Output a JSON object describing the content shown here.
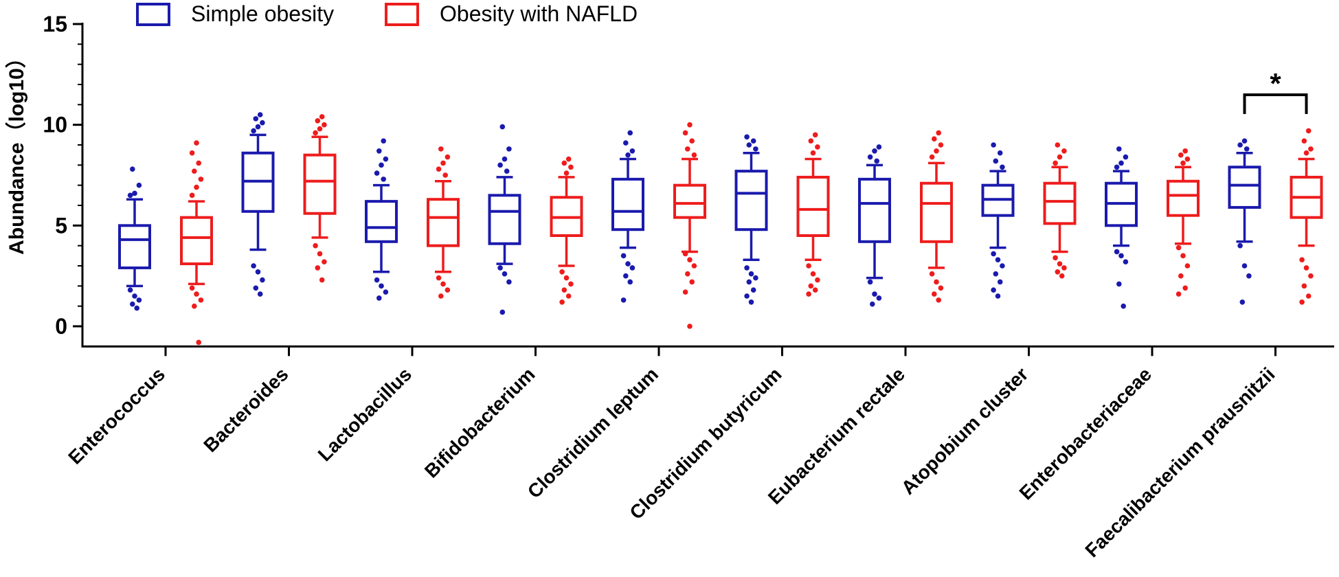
{
  "chart_data": {
    "type": "box",
    "title": "",
    "xlabel": "",
    "ylabel": "Abundance（log10）",
    "ylim": [
      -1,
      15
    ],
    "yticks": [
      0,
      5,
      10,
      15
    ],
    "legend_position": "top",
    "colors": {
      "simple": "#1a1aad",
      "nafld": "#ee1c1c"
    },
    "series": [
      {
        "name": "Simple obesity",
        "key": "simple",
        "color": "#1a1aad"
      },
      {
        "name": "Obesity with NAFLD",
        "key": "nafld",
        "color": "#ee1c1c"
      }
    ],
    "categories": [
      "Enterococcus",
      "Bacteroides",
      "Lactobacillus",
      "Bifidobacterium",
      "Clostridium leptum",
      "Clostridium butyricum",
      "Eubacterium rectale",
      "Atopobium cluster",
      "Enterobacteriaceae",
      "Faecalibacterium prausnitzii"
    ],
    "boxes": {
      "simple": [
        {
          "q1": 2.9,
          "median": 4.3,
          "q3": 5.0,
          "whisker_low": 2.0,
          "whisker_high": 6.3,
          "outliers": [
            1.8,
            1.5,
            1.3,
            1.1,
            0.9,
            6.5,
            6.6,
            7.0,
            7.8
          ]
        },
        {
          "q1": 5.7,
          "median": 7.2,
          "q3": 8.6,
          "whisker_low": 3.8,
          "whisker_high": 9.5,
          "outliers": [
            3.0,
            2.7,
            2.3,
            1.9,
            1.6,
            9.7,
            9.9,
            10.1,
            10.3,
            10.5
          ]
        },
        {
          "q1": 4.2,
          "median": 4.9,
          "q3": 6.2,
          "whisker_low": 2.7,
          "whisker_high": 7.0,
          "outliers": [
            2.3,
            2.0,
            1.7,
            1.4,
            7.3,
            7.6,
            8.0,
            8.3,
            8.7,
            9.2
          ]
        },
        {
          "q1": 4.1,
          "median": 5.7,
          "q3": 6.5,
          "whisker_low": 3.1,
          "whisker_high": 7.4,
          "outliers": [
            2.9,
            2.6,
            2.2,
            0.7,
            7.7,
            8.0,
            8.3,
            8.8,
            9.9
          ]
        },
        {
          "q1": 4.8,
          "median": 5.7,
          "q3": 7.3,
          "whisker_low": 3.9,
          "whisker_high": 8.3,
          "outliers": [
            3.5,
            3.1,
            2.9,
            2.5,
            2.2,
            1.3,
            8.5,
            8.7,
            9.1,
            9.6
          ]
        },
        {
          "q1": 4.8,
          "median": 6.6,
          "q3": 7.7,
          "whisker_low": 3.3,
          "whisker_high": 8.6,
          "outliers": [
            2.9,
            2.6,
            2.4,
            2.2,
            1.8,
            1.5,
            1.2,
            8.8,
            9.0,
            9.2,
            9.4
          ]
        },
        {
          "q1": 4.2,
          "median": 6.1,
          "q3": 7.3,
          "whisker_low": 2.4,
          "whisker_high": 8.0,
          "outliers": [
            2.2,
            1.6,
            1.4,
            1.1,
            8.2,
            8.4,
            8.7,
            8.9
          ]
        },
        {
          "q1": 5.5,
          "median": 6.3,
          "q3": 7.0,
          "whisker_low": 3.9,
          "whisker_high": 7.7,
          "outliers": [
            3.6,
            3.3,
            3.0,
            2.6,
            2.2,
            1.8,
            1.5,
            7.9,
            8.2,
            8.6,
            9.0
          ]
        },
        {
          "q1": 5.0,
          "median": 6.1,
          "q3": 7.1,
          "whisker_low": 4.0,
          "whisker_high": 7.7,
          "outliers": [
            3.7,
            3.5,
            3.2,
            2.1,
            1.0,
            7.9,
            8.1,
            8.4,
            8.8
          ]
        },
        {
          "q1": 5.9,
          "median": 7.0,
          "q3": 7.9,
          "whisker_low": 4.2,
          "whisker_high": 8.6,
          "outliers": [
            4.0,
            3.0,
            2.5,
            1.2,
            8.8,
            9.0,
            9.2
          ]
        }
      ],
      "nafld": [
        {
          "q1": 3.1,
          "median": 4.4,
          "q3": 5.4,
          "whisker_low": 2.1,
          "whisker_high": 6.2,
          "outliers": [
            1.9,
            1.6,
            1.3,
            1.0,
            -0.8,
            6.5,
            6.9,
            7.3,
            7.7,
            8.1,
            8.6,
            9.1
          ]
        },
        {
          "q1": 5.6,
          "median": 7.2,
          "q3": 8.5,
          "whisker_low": 4.4,
          "whisker_high": 9.4,
          "outliers": [
            4.0,
            3.6,
            3.2,
            2.9,
            2.3,
            9.6,
            9.8,
            10.0,
            10.2,
            10.4
          ]
        },
        {
          "q1": 4.0,
          "median": 5.4,
          "q3": 6.3,
          "whisker_low": 2.7,
          "whisker_high": 7.2,
          "outliers": [
            2.4,
            2.1,
            1.8,
            1.5,
            7.5,
            7.8,
            8.1,
            8.4,
            8.8
          ]
        },
        {
          "q1": 4.5,
          "median": 5.4,
          "q3": 6.4,
          "whisker_low": 3.0,
          "whisker_high": 7.4,
          "outliers": [
            2.7,
            2.4,
            2.1,
            1.8,
            1.5,
            1.2,
            7.6,
            7.9,
            8.1,
            8.3
          ]
        },
        {
          "q1": 5.4,
          "median": 6.1,
          "q3": 7.0,
          "whisker_low": 3.7,
          "whisker_high": 8.3,
          "outliers": [
            3.6,
            3.3,
            3.0,
            2.6,
            2.2,
            1.7,
            0.0,
            8.5,
            8.8,
            9.2,
            9.6,
            10.0
          ]
        },
        {
          "q1": 4.5,
          "median": 5.8,
          "q3": 7.4,
          "whisker_low": 3.3,
          "whisker_high": 8.3,
          "outliers": [
            3.0,
            2.6,
            2.3,
            2.0,
            1.8,
            1.6,
            8.6,
            8.9,
            9.2,
            9.5
          ]
        },
        {
          "q1": 4.2,
          "median": 6.1,
          "q3": 7.1,
          "whisker_low": 2.9,
          "whisker_high": 8.1,
          "outliers": [
            2.6,
            2.2,
            1.9,
            1.6,
            1.3,
            8.4,
            8.7,
            9.0,
            9.3,
            9.6
          ]
        },
        {
          "q1": 5.1,
          "median": 6.2,
          "q3": 7.1,
          "whisker_low": 3.7,
          "whisker_high": 7.9,
          "outliers": [
            3.4,
            3.1,
            2.9,
            2.7,
            2.5,
            8.1,
            8.4,
            8.7,
            9.0
          ]
        },
        {
          "q1": 5.5,
          "median": 6.5,
          "q3": 7.2,
          "whisker_low": 4.1,
          "whisker_high": 7.9,
          "outliers": [
            3.9,
            3.5,
            3.0,
            2.5,
            1.9,
            1.6,
            8.1,
            8.3,
            8.5,
            8.7
          ]
        },
        {
          "q1": 5.4,
          "median": 6.4,
          "q3": 7.4,
          "whisker_low": 4.0,
          "whisker_high": 8.3,
          "outliers": [
            3.3,
            2.9,
            2.5,
            2.0,
            1.5,
            1.2,
            8.6,
            8.8,
            9.2,
            9.7
          ]
        }
      ]
    },
    "annotations": [
      {
        "text": "*",
        "category": "Faecalibacterium prausnitzii",
        "type": "significance-bracket"
      }
    ]
  }
}
